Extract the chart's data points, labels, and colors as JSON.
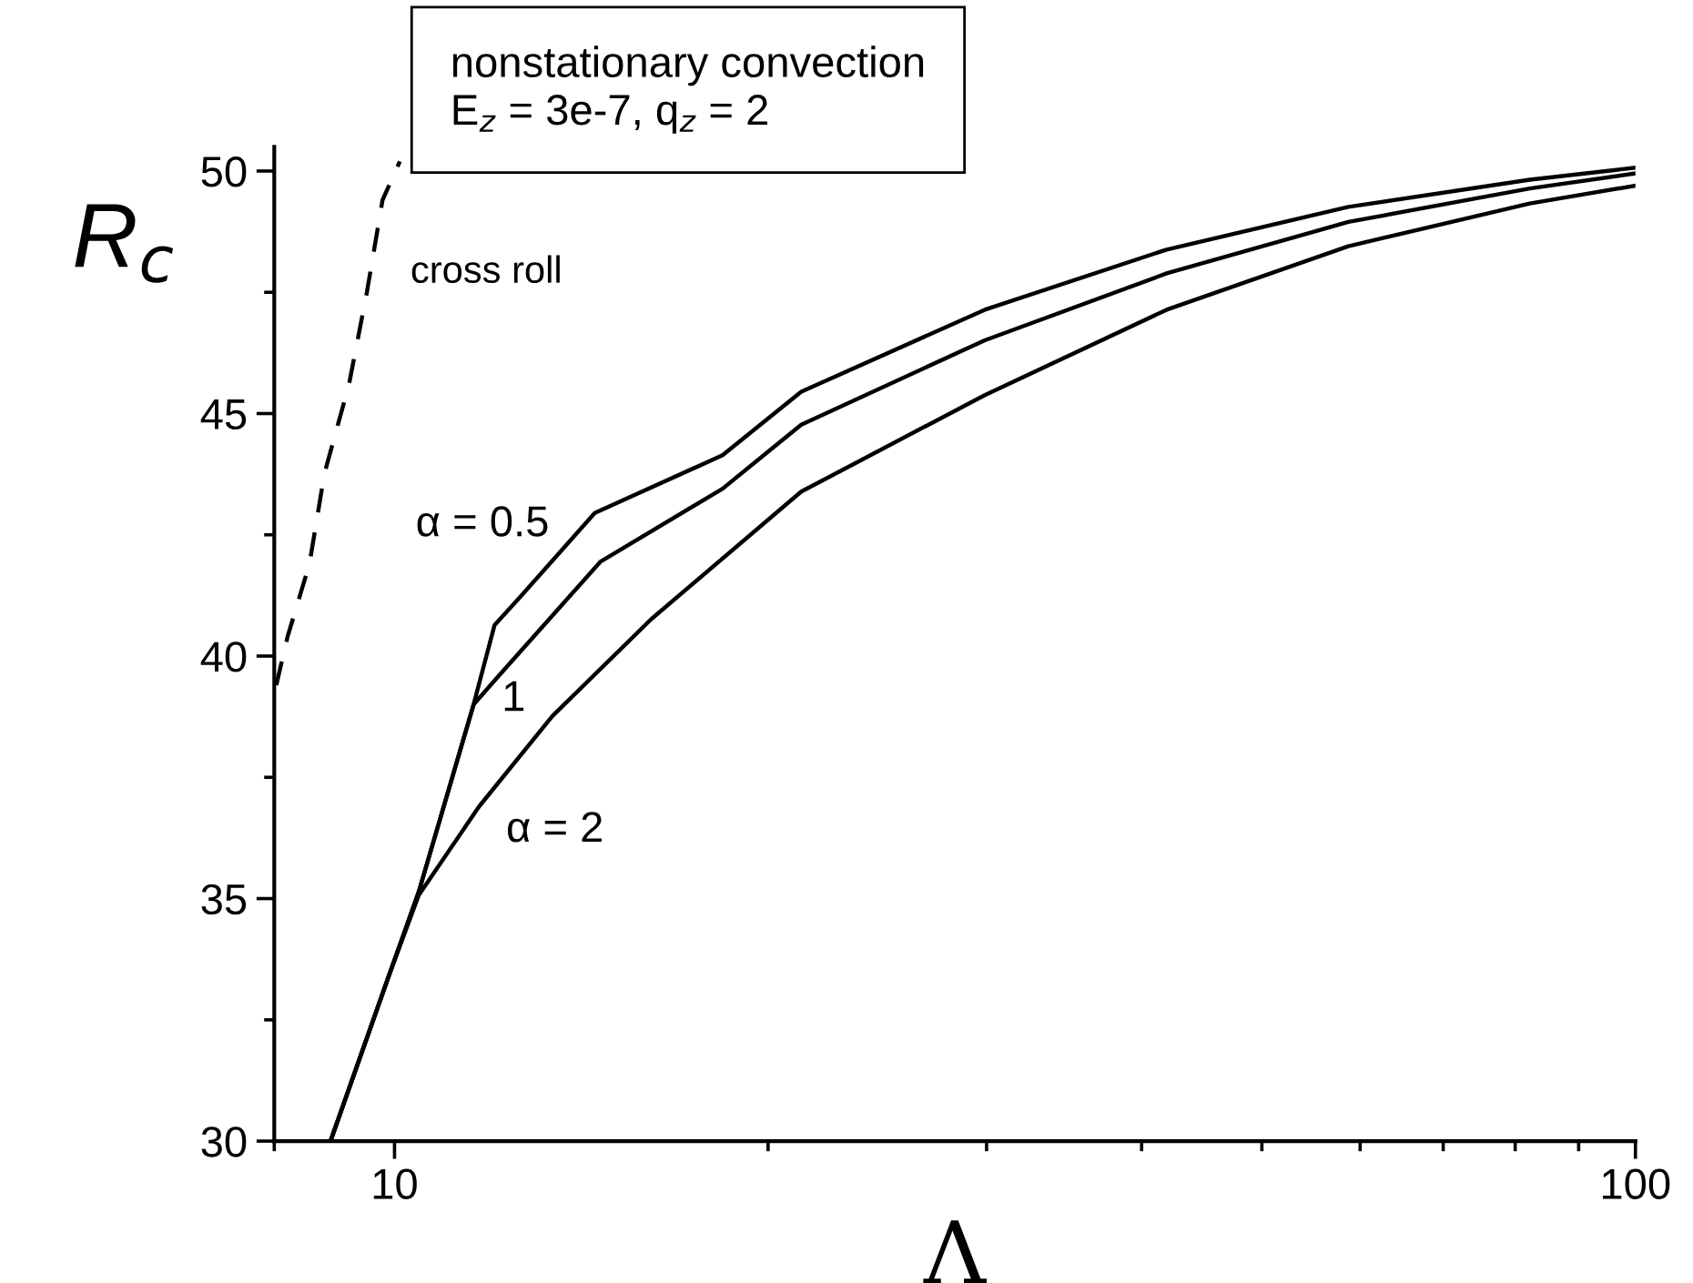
{
  "chart_data": {
    "type": "line",
    "xlabel": "Λ",
    "ylabel": "R$_{c}$",
    "log": "x",
    "grid": false,
    "legend": false,
    "xlim": [
      8,
      100
    ],
    "xticks": [
      {
        "value": 8,
        "label": null
      },
      10,
      {
        "value": 20,
        "label": null
      },
      {
        "value": 30,
        "label": null
      },
      {
        "value": 40,
        "label": null
      },
      {
        "value": 50,
        "label": null
      },
      {
        "value": 60,
        "label": null
      },
      {
        "value": 70,
        "label": null
      },
      {
        "value": 80,
        "label": null
      },
      {
        "value": 90,
        "label": null
      },
      100
    ],
    "ylim": [
      30,
      50.5
    ],
    "yticks": [
      30,
      {
        "value": 32.5,
        "label": null
      },
      35,
      {
        "value": 37.5,
        "label": null
      },
      40,
      {
        "value": 42.5,
        "label": null
      },
      45,
      {
        "value": 47.5,
        "label": null
      },
      50
    ],
    "annotations": [
      "nonstationary convection",
      "E$_{z}$ = 3e-7, q$_{z}$ = 2"
    ],
    "series": [
      {
        "name": "cross roll",
        "color": "#000000",
        "line_style": "dashed",
        "x": [
          8.03,
          8.2,
          8.54,
          8.78,
          9.19,
          9.5,
          9.78,
          10.1
        ],
        "values": [
          39.4,
          40.4,
          41.9,
          43.76,
          45.6,
          47.5,
          49.4,
          50.2
        ]
      },
      {
        "name": "α = 0.5",
        "color": "#000000",
        "line_style": "solid",
        "x": [
          8.88,
          9.89,
          10.46,
          11.58,
          12.04,
          12.67,
          14.5,
          18.38,
          21.27,
          29.9,
          41.9,
          58.7,
          82.2,
          100
        ],
        "values": [
          30,
          33.39,
          35.14,
          39.0,
          40.64,
          41.26,
          42.95,
          44.14,
          45.45,
          47.14,
          48.38,
          49.26,
          49.82,
          50.07
        ]
      },
      {
        "name": "1",
        "color": "#000000",
        "line_style": "solid",
        "x": [
          8.88,
          9.89,
          10.46,
          11.58,
          12.11,
          14.66,
          18.38,
          21.27,
          29.9,
          41.9,
          58.7,
          82.2,
          100
        ],
        "values": [
          30,
          33.39,
          35.14,
          39.0,
          39.57,
          41.95,
          43.45,
          44.77,
          46.51,
          47.89,
          48.95,
          49.64,
          49.95
        ]
      },
      {
        "name": "α = 2",
        "color": "#000000",
        "line_style": "solid",
        "x": [
          8.88,
          9.89,
          10.46,
          11.7,
          13.4,
          16.1,
          21.27,
          29.9,
          41.9,
          58.7,
          82.2,
          100
        ],
        "values": [
          30,
          33.39,
          35.07,
          36.9,
          38.76,
          40.76,
          43.39,
          45.38,
          47.14,
          48.45,
          49.33,
          49.7
        ]
      }
    ]
  }
}
